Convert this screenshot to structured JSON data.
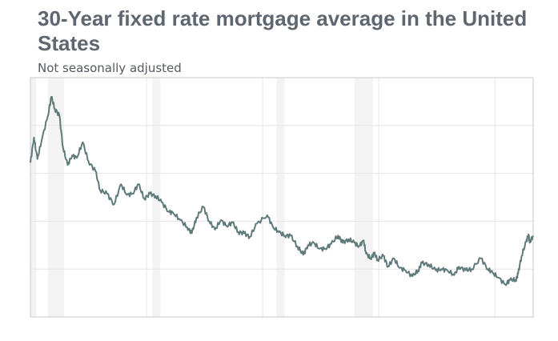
{
  "chart_data": {
    "type": "line",
    "title": "30-Year fixed rate mortgage average in the United States",
    "subtitle": "Not seasonally adjusted",
    "xlabel": "",
    "ylabel": "",
    "xlim": [
      1980.0,
      2023.3
    ],
    "ylim": [
      0,
      20
    ],
    "grid": true,
    "colors": {
      "line": "#5f7a7a",
      "recession": "#f3f3f3",
      "grid": "#e6e6e6",
      "frame": "#c8c8c8"
    },
    "recessions": [
      [
        1980.0,
        1980.5
      ],
      [
        1981.5,
        1982.9
      ],
      [
        1990.5,
        1991.2
      ],
      [
        2001.2,
        2001.9
      ],
      [
        2007.9,
        2009.5
      ]
    ],
    "series": [
      {
        "values": [
          [
            1980.0,
            12.9
          ],
          [
            1980.3,
            15.0
          ],
          [
            1980.6,
            13.2
          ],
          [
            1981.0,
            14.9
          ],
          [
            1981.5,
            16.8
          ],
          [
            1981.8,
            18.4
          ],
          [
            1982.1,
            17.4
          ],
          [
            1982.5,
            16.8
          ],
          [
            1982.8,
            14.2
          ],
          [
            1983.2,
            12.7
          ],
          [
            1983.6,
            13.5
          ],
          [
            1984.0,
            13.3
          ],
          [
            1984.5,
            14.6
          ],
          [
            1985.0,
            13.0
          ],
          [
            1985.6,
            12.2
          ],
          [
            1986.0,
            10.6
          ],
          [
            1986.6,
            10.3
          ],
          [
            1987.2,
            9.4
          ],
          [
            1987.8,
            11.1
          ],
          [
            1988.3,
            10.2
          ],
          [
            1988.8,
            10.3
          ],
          [
            1989.3,
            11.1
          ],
          [
            1989.8,
            9.9
          ],
          [
            1990.3,
            10.3
          ],
          [
            1990.8,
            10.1
          ],
          [
            1991.3,
            9.6
          ],
          [
            1991.9,
            8.8
          ],
          [
            1992.3,
            8.7
          ],
          [
            1992.9,
            8.1
          ],
          [
            1993.5,
            7.5
          ],
          [
            1993.9,
            7.0
          ],
          [
            1994.3,
            8.3
          ],
          [
            1994.9,
            9.2
          ],
          [
            1995.4,
            8.0
          ],
          [
            1995.9,
            7.3
          ],
          [
            1996.4,
            8.1
          ],
          [
            1996.9,
            7.6
          ],
          [
            1997.4,
            7.9
          ],
          [
            1997.9,
            7.1
          ],
          [
            1998.4,
            7.0
          ],
          [
            1998.9,
            6.7
          ],
          [
            1999.5,
            7.8
          ],
          [
            2000.4,
            8.5
          ],
          [
            2000.9,
            7.5
          ],
          [
            2001.4,
            7.1
          ],
          [
            2001.9,
            6.8
          ],
          [
            2002.4,
            6.8
          ],
          [
            2003.0,
            5.9
          ],
          [
            2003.5,
            5.2
          ],
          [
            2003.9,
            6.0
          ],
          [
            2004.4,
            6.2
          ],
          [
            2004.9,
            5.7
          ],
          [
            2005.4,
            5.7
          ],
          [
            2005.9,
            6.1
          ],
          [
            2006.5,
            6.8
          ],
          [
            2006.9,
            6.2
          ],
          [
            2007.4,
            6.5
          ],
          [
            2007.9,
            6.2
          ],
          [
            2008.3,
            5.9
          ],
          [
            2008.7,
            6.4
          ],
          [
            2008.9,
            5.3
          ],
          [
            2009.3,
            4.9
          ],
          [
            2009.6,
            5.3
          ],
          [
            2009.9,
            4.8
          ],
          [
            2010.4,
            5.1
          ],
          [
            2010.8,
            4.2
          ],
          [
            2011.3,
            4.9
          ],
          [
            2011.8,
            4.1
          ],
          [
            2012.3,
            3.9
          ],
          [
            2012.9,
            3.4
          ],
          [
            2013.4,
            3.9
          ],
          [
            2013.7,
            4.5
          ],
          [
            2014.3,
            4.4
          ],
          [
            2014.9,
            3.9
          ],
          [
            2015.4,
            4.0
          ],
          [
            2015.9,
            3.9
          ],
          [
            2016.5,
            3.5
          ],
          [
            2016.9,
            4.2
          ],
          [
            2017.5,
            3.9
          ],
          [
            2018.0,
            4.0
          ],
          [
            2018.8,
            4.9
          ],
          [
            2019.4,
            4.0
          ],
          [
            2019.8,
            3.7
          ],
          [
            2020.3,
            3.3
          ],
          [
            2020.9,
            2.7
          ],
          [
            2021.3,
            3.1
          ],
          [
            2021.8,
            3.1
          ],
          [
            2022.0,
            3.6
          ],
          [
            2022.3,
            5.1
          ],
          [
            2022.7,
            6.3
          ],
          [
            2022.9,
            6.9
          ],
          [
            2023.0,
            6.2
          ],
          [
            2023.3,
            6.8
          ]
        ]
      }
    ]
  }
}
